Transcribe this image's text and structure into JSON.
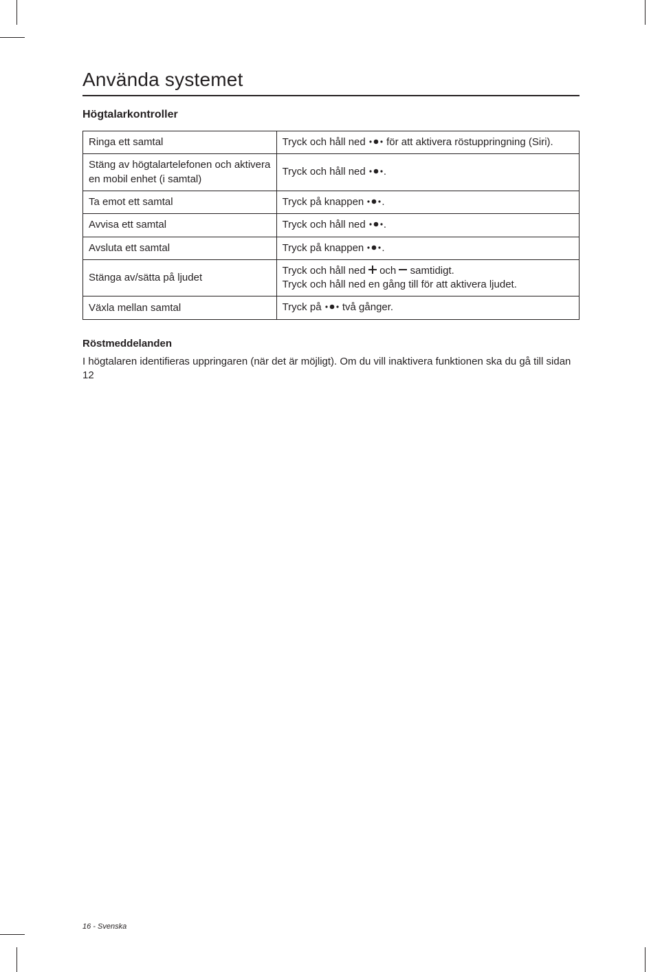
{
  "heading": "Använda systemet",
  "subheading": "Högtalarkontroller",
  "table": {
    "rows": [
      {
        "left": "Ringa ett samtal",
        "right_parts": [
          "Tryck och håll ned ",
          "DOTS",
          " för att aktivera röstuppringning (Siri)."
        ]
      },
      {
        "left": "Stäng av högtalartelefonen och aktivera en mobil enhet (i samtal)",
        "right_parts": [
          "Tryck och håll ned ",
          "DOTS",
          "."
        ]
      },
      {
        "left": "Ta emot ett samtal",
        "right_parts": [
          "Tryck på knappen ",
          "DOTS",
          "."
        ]
      },
      {
        "left": "Avvisa ett samtal",
        "right_parts": [
          "Tryck och håll ned ",
          "DOTS",
          "."
        ]
      },
      {
        "left": "Avsluta ett samtal",
        "right_parts": [
          "Tryck på knappen ",
          "DOTS",
          "."
        ]
      },
      {
        "left": "Stänga av/sätta på ljudet",
        "right_parts": [
          "Tryck och håll ned ",
          "PLUS",
          " och ",
          "MINUS",
          " samtidigt.",
          "BR",
          "Tryck och håll ned en gång till för att aktivera ljudet."
        ]
      },
      {
        "left": "Växla mellan samtal",
        "right_parts": [
          "Tryck på ",
          "DOTS",
          " två gånger."
        ]
      }
    ]
  },
  "section_title": "Röstmeddelanden",
  "body_text": "I högtalaren identifieras uppringaren (när det är möjligt). Om du vill inaktivera funktionen ska du gå till sidan 12",
  "footer": "16 - Svenska",
  "icons": {
    "dots_svg": "<svg width='22' height='10' viewBox='0 0 22 10'><circle cx='3' cy='5' r='1.6' fill='#231f20'/><circle cx='11' cy='5' r='3.3' fill='#231f20'/><circle cx='19' cy='5' r='1.6' fill='#231f20'/></svg>",
    "plus_svg": "<svg width='12' height='12' viewBox='0 0 12 12'><rect x='5' y='0' width='2' height='12' fill='#231f20'/><rect x='0' y='5' width='12' height='2' fill='#231f20'/></svg>",
    "minus_svg": "<svg width='12' height='12' viewBox='0 0 12 12'><rect x='0' y='5' width='12' height='2' fill='#231f20'/></svg>"
  }
}
